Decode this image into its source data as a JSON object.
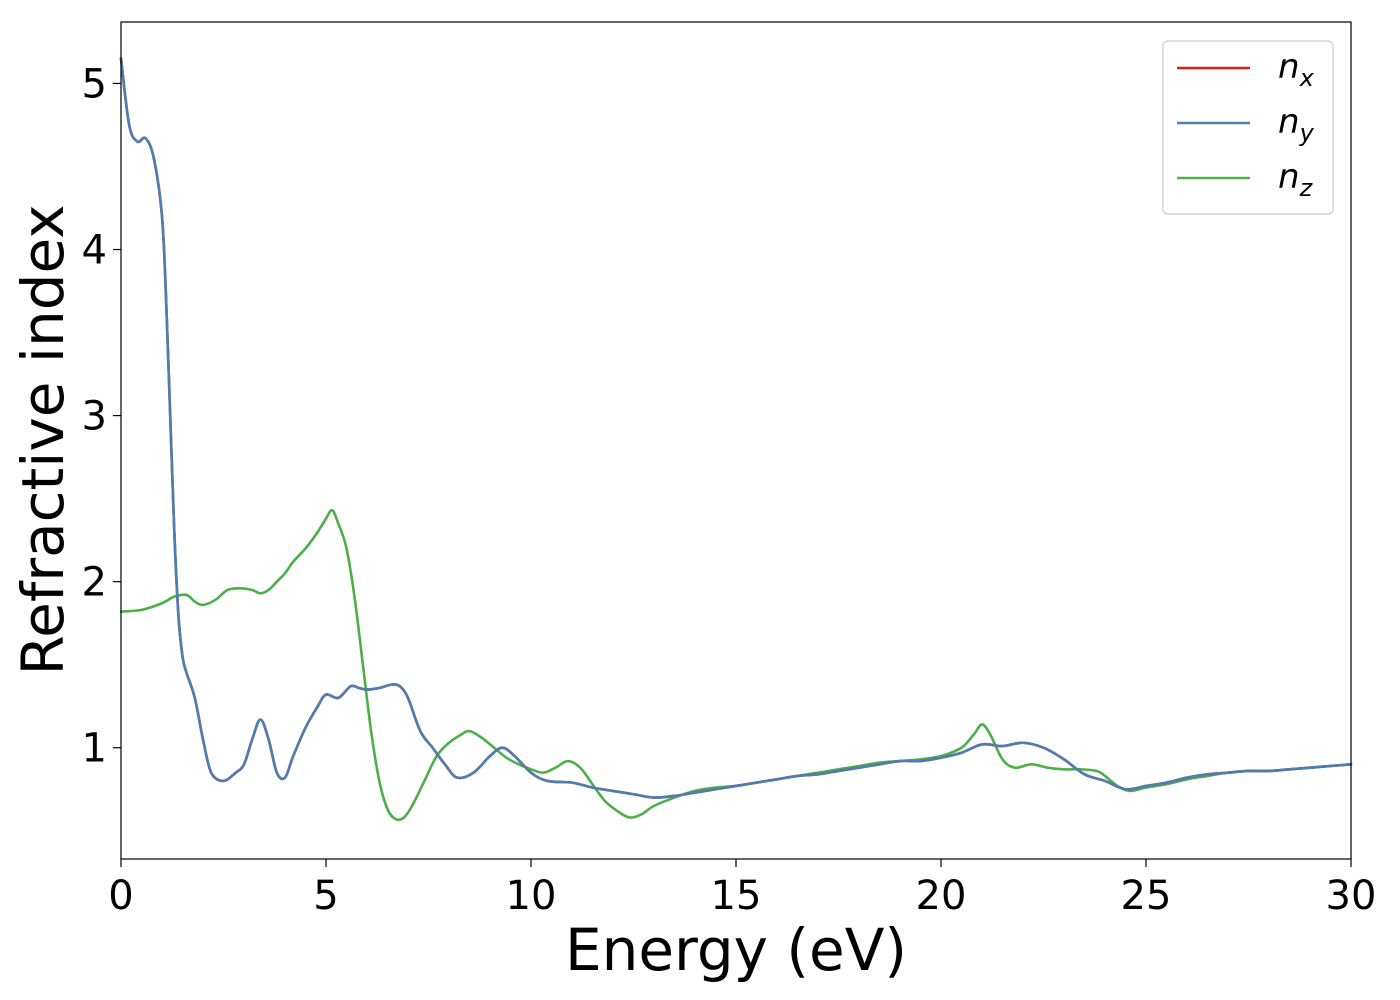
{
  "chart_data": {
    "type": "line",
    "title": "",
    "xlabel": "Energy (eV)",
    "ylabel": "Refractive index",
    "xlim": [
      0,
      30
    ],
    "ylim": [
      0.33,
      5.37
    ],
    "xticks": [
      0,
      5,
      10,
      15,
      20,
      25,
      30
    ],
    "yticks": [
      1,
      2,
      3,
      4,
      5
    ],
    "grid": false,
    "legend_position": "top-right",
    "series": [
      {
        "name": "n",
        "subscript": "x",
        "color": "#e41a1c",
        "x": [
          0,
          0.2,
          0.4,
          0.6,
          0.8,
          1.0,
          1.1,
          1.2,
          1.3,
          1.4,
          1.5,
          1.6,
          1.8,
          2.0,
          2.2,
          2.5,
          2.8,
          3.0,
          3.2,
          3.4,
          3.6,
          3.8,
          4.0,
          4.2,
          4.5,
          4.8,
          5.0,
          5.3,
          5.6,
          5.8,
          6.0,
          6.3,
          6.6,
          6.8,
          7.0,
          7.3,
          7.6,
          7.9,
          8.2,
          8.6,
          9.0,
          9.3,
          9.6,
          10.0,
          10.4,
          11.0,
          11.5,
          12.0,
          12.5,
          13.0,
          13.5,
          14.0,
          14.5,
          15.0,
          15.5,
          16.0,
          16.5,
          17.0,
          17.5,
          18.0,
          18.5,
          19.0,
          19.5,
          20.0,
          20.5,
          21.0,
          21.5,
          22.0,
          22.5,
          23.0,
          23.5,
          24.0,
          24.5,
          25.0,
          25.5,
          26.0,
          26.5,
          27.0,
          27.5,
          28.0,
          28.5,
          29.0,
          29.5,
          30.0
        ],
        "y": [
          5.15,
          4.75,
          4.65,
          4.67,
          4.55,
          4.2,
          3.7,
          3.0,
          2.3,
          1.8,
          1.55,
          1.45,
          1.3,
          1.05,
          0.85,
          0.8,
          0.85,
          0.9,
          1.05,
          1.17,
          1.05,
          0.85,
          0.82,
          0.95,
          1.12,
          1.25,
          1.32,
          1.3,
          1.37,
          1.36,
          1.35,
          1.36,
          1.38,
          1.37,
          1.3,
          1.1,
          1.0,
          0.9,
          0.82,
          0.85,
          0.95,
          1.0,
          0.95,
          0.85,
          0.8,
          0.79,
          0.76,
          0.74,
          0.72,
          0.7,
          0.71,
          0.73,
          0.75,
          0.77,
          0.79,
          0.81,
          0.83,
          0.84,
          0.86,
          0.88,
          0.9,
          0.92,
          0.92,
          0.94,
          0.97,
          1.02,
          1.01,
          1.03,
          1.0,
          0.93,
          0.84,
          0.8,
          0.75,
          0.77,
          0.79,
          0.82,
          0.84,
          0.85,
          0.86,
          0.86,
          0.87,
          0.88,
          0.89,
          0.9
        ]
      },
      {
        "name": "n",
        "subscript": "y",
        "color": "#4a7fb0",
        "x": [
          0,
          0.2,
          0.4,
          0.6,
          0.8,
          1.0,
          1.1,
          1.2,
          1.3,
          1.4,
          1.5,
          1.6,
          1.8,
          2.0,
          2.2,
          2.5,
          2.8,
          3.0,
          3.2,
          3.4,
          3.6,
          3.8,
          4.0,
          4.2,
          4.5,
          4.8,
          5.0,
          5.3,
          5.6,
          5.8,
          6.0,
          6.3,
          6.6,
          6.8,
          7.0,
          7.3,
          7.6,
          7.9,
          8.2,
          8.6,
          9.0,
          9.3,
          9.6,
          10.0,
          10.4,
          11.0,
          11.5,
          12.0,
          12.5,
          13.0,
          13.5,
          14.0,
          14.5,
          15.0,
          15.5,
          16.0,
          16.5,
          17.0,
          17.5,
          18.0,
          18.5,
          19.0,
          19.5,
          20.0,
          20.5,
          21.0,
          21.5,
          22.0,
          22.5,
          23.0,
          23.5,
          24.0,
          24.5,
          25.0,
          25.5,
          26.0,
          26.5,
          27.0,
          27.5,
          28.0,
          28.5,
          29.0,
          29.5,
          30.0
        ],
        "y": [
          5.15,
          4.75,
          4.65,
          4.67,
          4.55,
          4.2,
          3.7,
          3.0,
          2.3,
          1.8,
          1.55,
          1.45,
          1.3,
          1.05,
          0.85,
          0.8,
          0.85,
          0.9,
          1.05,
          1.17,
          1.05,
          0.85,
          0.82,
          0.95,
          1.12,
          1.25,
          1.32,
          1.3,
          1.37,
          1.36,
          1.35,
          1.36,
          1.38,
          1.37,
          1.3,
          1.1,
          1.0,
          0.9,
          0.82,
          0.85,
          0.95,
          1.0,
          0.95,
          0.85,
          0.8,
          0.79,
          0.76,
          0.74,
          0.72,
          0.7,
          0.71,
          0.73,
          0.75,
          0.77,
          0.79,
          0.81,
          0.83,
          0.84,
          0.86,
          0.88,
          0.9,
          0.92,
          0.92,
          0.94,
          0.97,
          1.02,
          1.01,
          1.03,
          1.0,
          0.93,
          0.84,
          0.8,
          0.75,
          0.77,
          0.79,
          0.82,
          0.84,
          0.85,
          0.86,
          0.86,
          0.87,
          0.88,
          0.89,
          0.9
        ]
      },
      {
        "name": "n",
        "subscript": "z",
        "color": "#4daf4a",
        "x": [
          0,
          0.5,
          1.0,
          1.3,
          1.6,
          1.8,
          2.0,
          2.3,
          2.6,
          2.9,
          3.2,
          3.4,
          3.6,
          3.8,
          4.0,
          4.2,
          4.5,
          4.8,
          5.0,
          5.15,
          5.3,
          5.5,
          5.7,
          5.9,
          6.1,
          6.3,
          6.5,
          6.7,
          6.9,
          7.1,
          7.4,
          7.7,
          8.0,
          8.3,
          8.5,
          8.8,
          9.1,
          9.4,
          9.7,
          10.0,
          10.3,
          10.6,
          10.9,
          11.2,
          11.5,
          11.8,
          12.1,
          12.4,
          12.7,
          13.0,
          13.5,
          14.0,
          14.5,
          15.0,
          15.5,
          16.0,
          16.5,
          17.0,
          17.5,
          18.0,
          18.5,
          19.0,
          19.5,
          20.0,
          20.5,
          20.8,
          21.0,
          21.2,
          21.5,
          21.8,
          22.2,
          22.6,
          23.0,
          23.4,
          23.8,
          24.0,
          24.3,
          24.6,
          25.0,
          25.5,
          26.0,
          26.5,
          27.0,
          27.5,
          28.0,
          28.5,
          29.0,
          29.5,
          30.0
        ],
        "y": [
          1.82,
          1.83,
          1.87,
          1.91,
          1.92,
          1.88,
          1.86,
          1.89,
          1.95,
          1.96,
          1.95,
          1.93,
          1.95,
          2.0,
          2.05,
          2.12,
          2.2,
          2.3,
          2.38,
          2.43,
          2.35,
          2.2,
          1.9,
          1.5,
          1.1,
          0.8,
          0.63,
          0.57,
          0.58,
          0.65,
          0.8,
          0.95,
          1.03,
          1.08,
          1.1,
          1.06,
          1.0,
          0.94,
          0.9,
          0.87,
          0.85,
          0.88,
          0.92,
          0.88,
          0.78,
          0.68,
          0.62,
          0.58,
          0.6,
          0.65,
          0.7,
          0.74,
          0.76,
          0.77,
          0.79,
          0.81,
          0.83,
          0.85,
          0.87,
          0.89,
          0.91,
          0.92,
          0.93,
          0.95,
          1.0,
          1.08,
          1.14,
          1.08,
          0.93,
          0.88,
          0.9,
          0.88,
          0.87,
          0.87,
          0.86,
          0.83,
          0.77,
          0.74,
          0.76,
          0.78,
          0.81,
          0.83,
          0.85,
          0.86,
          0.86,
          0.87,
          0.88,
          0.89,
          0.9
        ]
      }
    ]
  }
}
